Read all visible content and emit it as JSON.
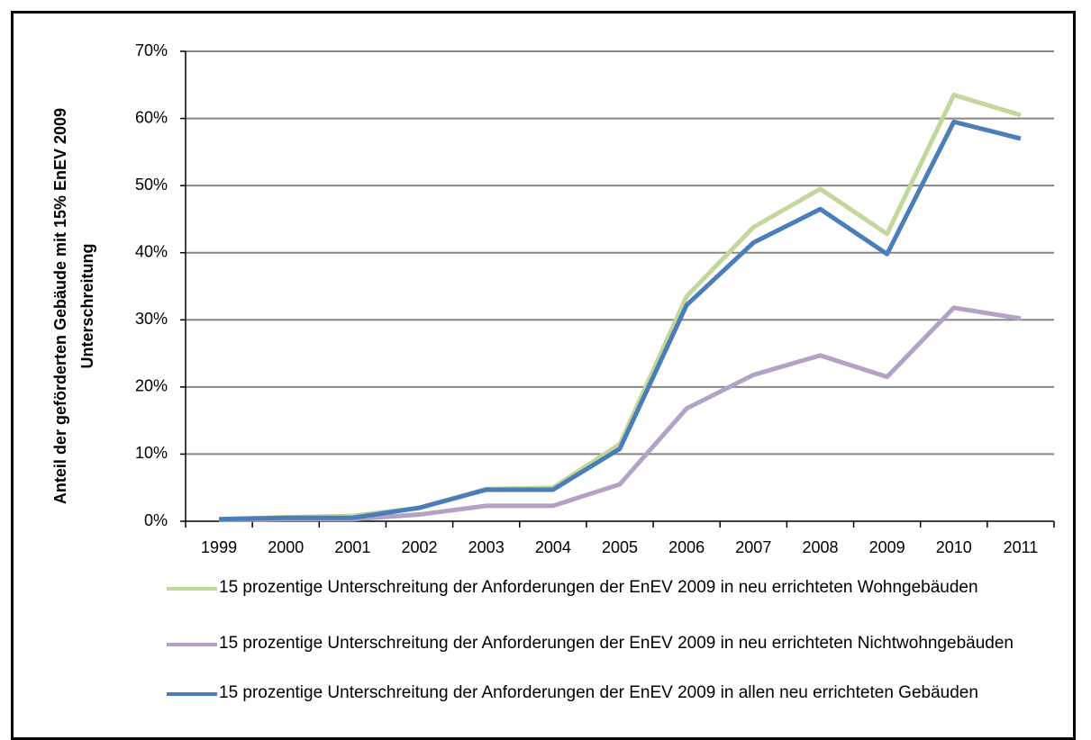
{
  "chart_data": {
    "type": "line",
    "y_label": [
      "Anteil der geförderten Gebäude mit 15% EnEV 2009",
      "Unterschreitung"
    ],
    "categories": [
      "1999",
      "2000",
      "2001",
      "2002",
      "2003",
      "2004",
      "2005",
      "2006",
      "2007",
      "2008",
      "2009",
      "2010",
      "2011"
    ],
    "series": [
      {
        "name": "15 prozentige Unterschreitung  der Anforderungen der EnEV 2009 in neu errichteten Wohngebäuden",
        "color": "#c3d69b",
        "values": [
          0.3,
          0.6,
          0.8,
          2.0,
          4.8,
          5.0,
          11.5,
          33.5,
          43.8,
          49.5,
          42.8,
          63.5,
          60.5
        ]
      },
      {
        "name": "15 prozentige Unterschreitung  der Anforderungen der EnEV 2009 in neu errichteten Nichtwohngebäuden",
        "color": "#b3a2c7",
        "values": [
          0.2,
          0.3,
          0.3,
          1.0,
          2.3,
          2.3,
          5.5,
          16.8,
          21.8,
          24.7,
          21.5,
          31.8,
          30.2
        ]
      },
      {
        "name": "15 prozentige Unterschreitung  der Anforderungen der EnEV 2009 in allen neu errichteten  Gebäuden",
        "color": "#4a7ebb",
        "values": [
          0.3,
          0.5,
          0.5,
          2.0,
          4.7,
          4.7,
          10.8,
          32.2,
          41.5,
          46.5,
          39.8,
          59.5,
          57.0
        ]
      }
    ],
    "ylim": [
      0,
      70
    ],
    "yticks": [
      {
        "value": 0,
        "label": "0%"
      },
      {
        "value": 10,
        "label": "10%"
      },
      {
        "value": 20,
        "label": "20%"
      },
      {
        "value": 30,
        "label": "30%"
      },
      {
        "value": 40,
        "label": "40%"
      },
      {
        "value": 50,
        "label": "50%"
      },
      {
        "value": 60,
        "label": "60%"
      },
      {
        "value": 70,
        "label": "70%"
      }
    ],
    "grid": true,
    "legend": "bottom"
  }
}
